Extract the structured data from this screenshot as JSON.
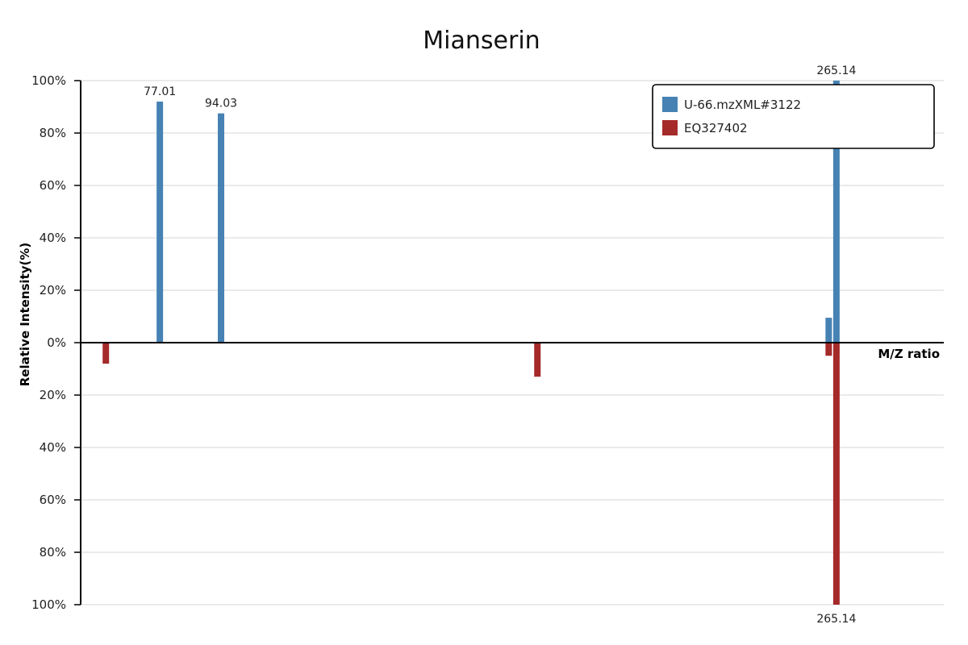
{
  "chart_data": {
    "type": "bar",
    "title": "Mianserin",
    "xlabel": "M/Z ratio",
    "ylabel": "Relative Intensity(%)",
    "ylim": [
      -100,
      100
    ],
    "yticks": [
      100,
      80,
      60,
      40,
      20,
      0,
      -20,
      -40,
      -60,
      -80,
      -100
    ],
    "ytick_labels": [
      "100%",
      "80%",
      "60%",
      "40%",
      "20%",
      "0%",
      "20%",
      "40%",
      "60%",
      "80%",
      "100%"
    ],
    "xlim": [
      55,
      295
    ],
    "grid": true,
    "legend_position": "top-right",
    "series": [
      {
        "name": "U-66.mzXML#3122",
        "color": "#4682b4",
        "direction": "up",
        "points": [
          {
            "mz": 77.01,
            "intensity": 92,
            "label": "77.01"
          },
          {
            "mz": 94.03,
            "intensity": 87.5,
            "label": "94.03"
          },
          {
            "mz": 263.0,
            "intensity": 9.5,
            "label": ""
          },
          {
            "mz": 265.14,
            "intensity": 100,
            "label": "265.14"
          }
        ]
      },
      {
        "name": "EQ327402",
        "color": "#a52a2a",
        "direction": "down",
        "points": [
          {
            "mz": 62.0,
            "intensity": 8,
            "label": ""
          },
          {
            "mz": 182.0,
            "intensity": 13,
            "label": ""
          },
          {
            "mz": 263.0,
            "intensity": 5,
            "label": ""
          },
          {
            "mz": 265.14,
            "intensity": 100,
            "label": "265.14"
          }
        ]
      }
    ]
  }
}
